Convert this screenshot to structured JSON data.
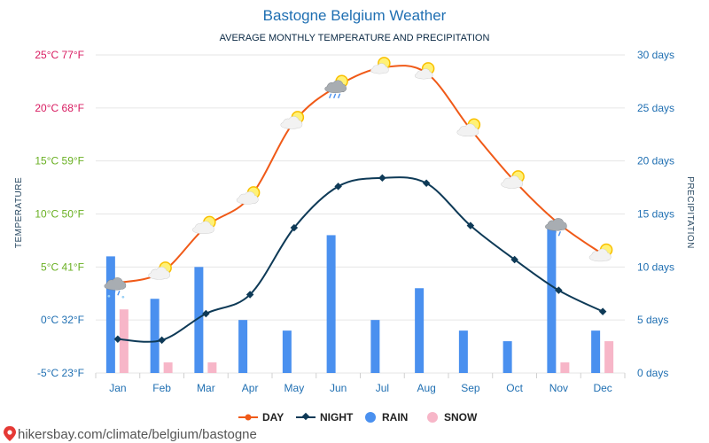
{
  "chart_data": {
    "type": "line",
    "title": "Bastogne Belgium Weather",
    "subtitle": "AVERAGE MONTHLY TEMPERATURE AND PRECIPITATION",
    "categories": [
      "Jan",
      "Feb",
      "Mar",
      "Apr",
      "May",
      "Jun",
      "Jul",
      "Aug",
      "Sep",
      "Oct",
      "Nov",
      "Dec"
    ],
    "y_left": {
      "label": "TEMPERATURE",
      "range": [
        -5,
        25
      ],
      "ticks": [
        "-5°C 23°F",
        "0°C 32°F",
        "5°C 41°F",
        "10°C 50°F",
        "15°C 59°F",
        "20°C 68°F",
        "25°C 77°F"
      ],
      "tick_colors": [
        "#1f6fb2",
        "#1f6fb2",
        "#6ab023",
        "#6ab023",
        "#6ab023",
        "#d81b60",
        "#d81b60"
      ]
    },
    "y_right": {
      "label": "PRECIPITATION",
      "range": [
        0,
        30
      ],
      "ticks": [
        "0 days",
        "5 days",
        "10 days",
        "15 days",
        "20 days",
        "25 days",
        "30 days"
      ]
    },
    "series": [
      {
        "name": "DAY",
        "type": "line",
        "color": "#f05a18",
        "values": [
          3.5,
          4.5,
          8.8,
          11.6,
          18.7,
          22.1,
          23.8,
          23.3,
          18.0,
          13.1,
          9.1,
          6.2
        ]
      },
      {
        "name": "NIGHT",
        "type": "line",
        "color": "#0e3a57",
        "values": [
          -1.8,
          -1.9,
          0.6,
          2.4,
          8.7,
          12.6,
          13.4,
          12.9,
          8.9,
          5.7,
          2.8,
          0.8
        ]
      },
      {
        "name": "RAIN",
        "type": "bar",
        "color": "#4a90ef",
        "values": [
          11,
          7,
          10,
          5,
          4,
          13,
          5,
          8,
          4,
          3,
          14,
          4
        ]
      },
      {
        "name": "SNOW",
        "type": "bar",
        "color": "#f7b6c8",
        "values": [
          6,
          1,
          1,
          0,
          0,
          0,
          0,
          0,
          0,
          0,
          1,
          3
        ]
      }
    ],
    "weather_icons": [
      "rain-snow-cloud-icon",
      "partly-sunny-icon",
      "cloud-sun-icon",
      "partly-sunny-icon",
      "partly-sunny-icon",
      "cloud-rain-sun-icon",
      "sunny-icon",
      "sunny-icon",
      "partly-sunny-icon",
      "partly-sunny-icon",
      "rain-cloud-icon",
      "cloud-sun-icon"
    ],
    "grid": true,
    "legend_position": "bottom"
  },
  "footer": {
    "text": "hikersbay.com/climate/belgium/bastogne"
  }
}
